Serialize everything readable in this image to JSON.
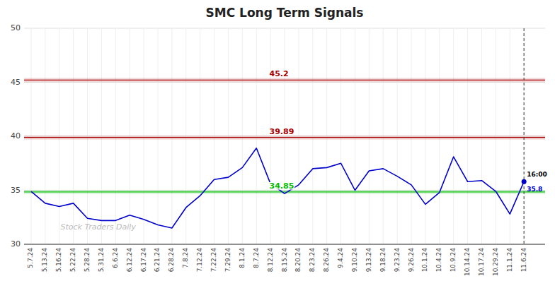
{
  "chart_data": {
    "type": "line",
    "title": "SMC Long Term Signals",
    "watermark": "Stock Traders Daily",
    "categories": [
      "5.7.24",
      "5.13.24",
      "5.16.24",
      "5.22.24",
      "5.28.24",
      "5.31.24",
      "6.6.24",
      "6.12.24",
      "6.17.24",
      "6.21.24",
      "6.28.24",
      "7.8.24",
      "7.12.24",
      "7.22.24",
      "7.29.24",
      "8.1.24",
      "8.7.24",
      "8.12.24",
      "8.15.24",
      "8.20.24",
      "8.23.24",
      "8.26.24",
      "9.4.24",
      "9.10.24",
      "9.13.24",
      "9.18.24",
      "9.23.24",
      "9.26.24",
      "10.1.24",
      "10.4.24",
      "10.9.24",
      "10.14.24",
      "10.17.24",
      "10.29.24",
      "11.1.24",
      "11.6.24"
    ],
    "values": [
      34.9,
      33.8,
      33.5,
      33.8,
      32.4,
      32.2,
      32.2,
      32.7,
      32.3,
      31.8,
      31.5,
      33.4,
      34.5,
      36.0,
      36.2,
      37.1,
      38.9,
      35.6,
      34.7,
      35.5,
      37.0,
      37.1,
      37.5,
      35.0,
      36.8,
      37.0,
      36.3,
      35.5,
      33.7,
      34.8,
      38.1,
      35.8,
      35.9,
      34.9,
      32.8,
      35.8
    ],
    "color": "#0000cc",
    "hlines": [
      {
        "value": 45.2,
        "label": "45.2",
        "color": "#aa0000"
      },
      {
        "value": 39.89,
        "label": "39.89",
        "color": "#aa0000"
      },
      {
        "value": 34.85,
        "label": "34.85",
        "color": "#00bb00"
      }
    ],
    "last_point_label": "16:00",
    "ylim": [
      30,
      50
    ],
    "yticks": [
      30,
      35,
      40,
      45,
      50
    ],
    "grid": true
  }
}
